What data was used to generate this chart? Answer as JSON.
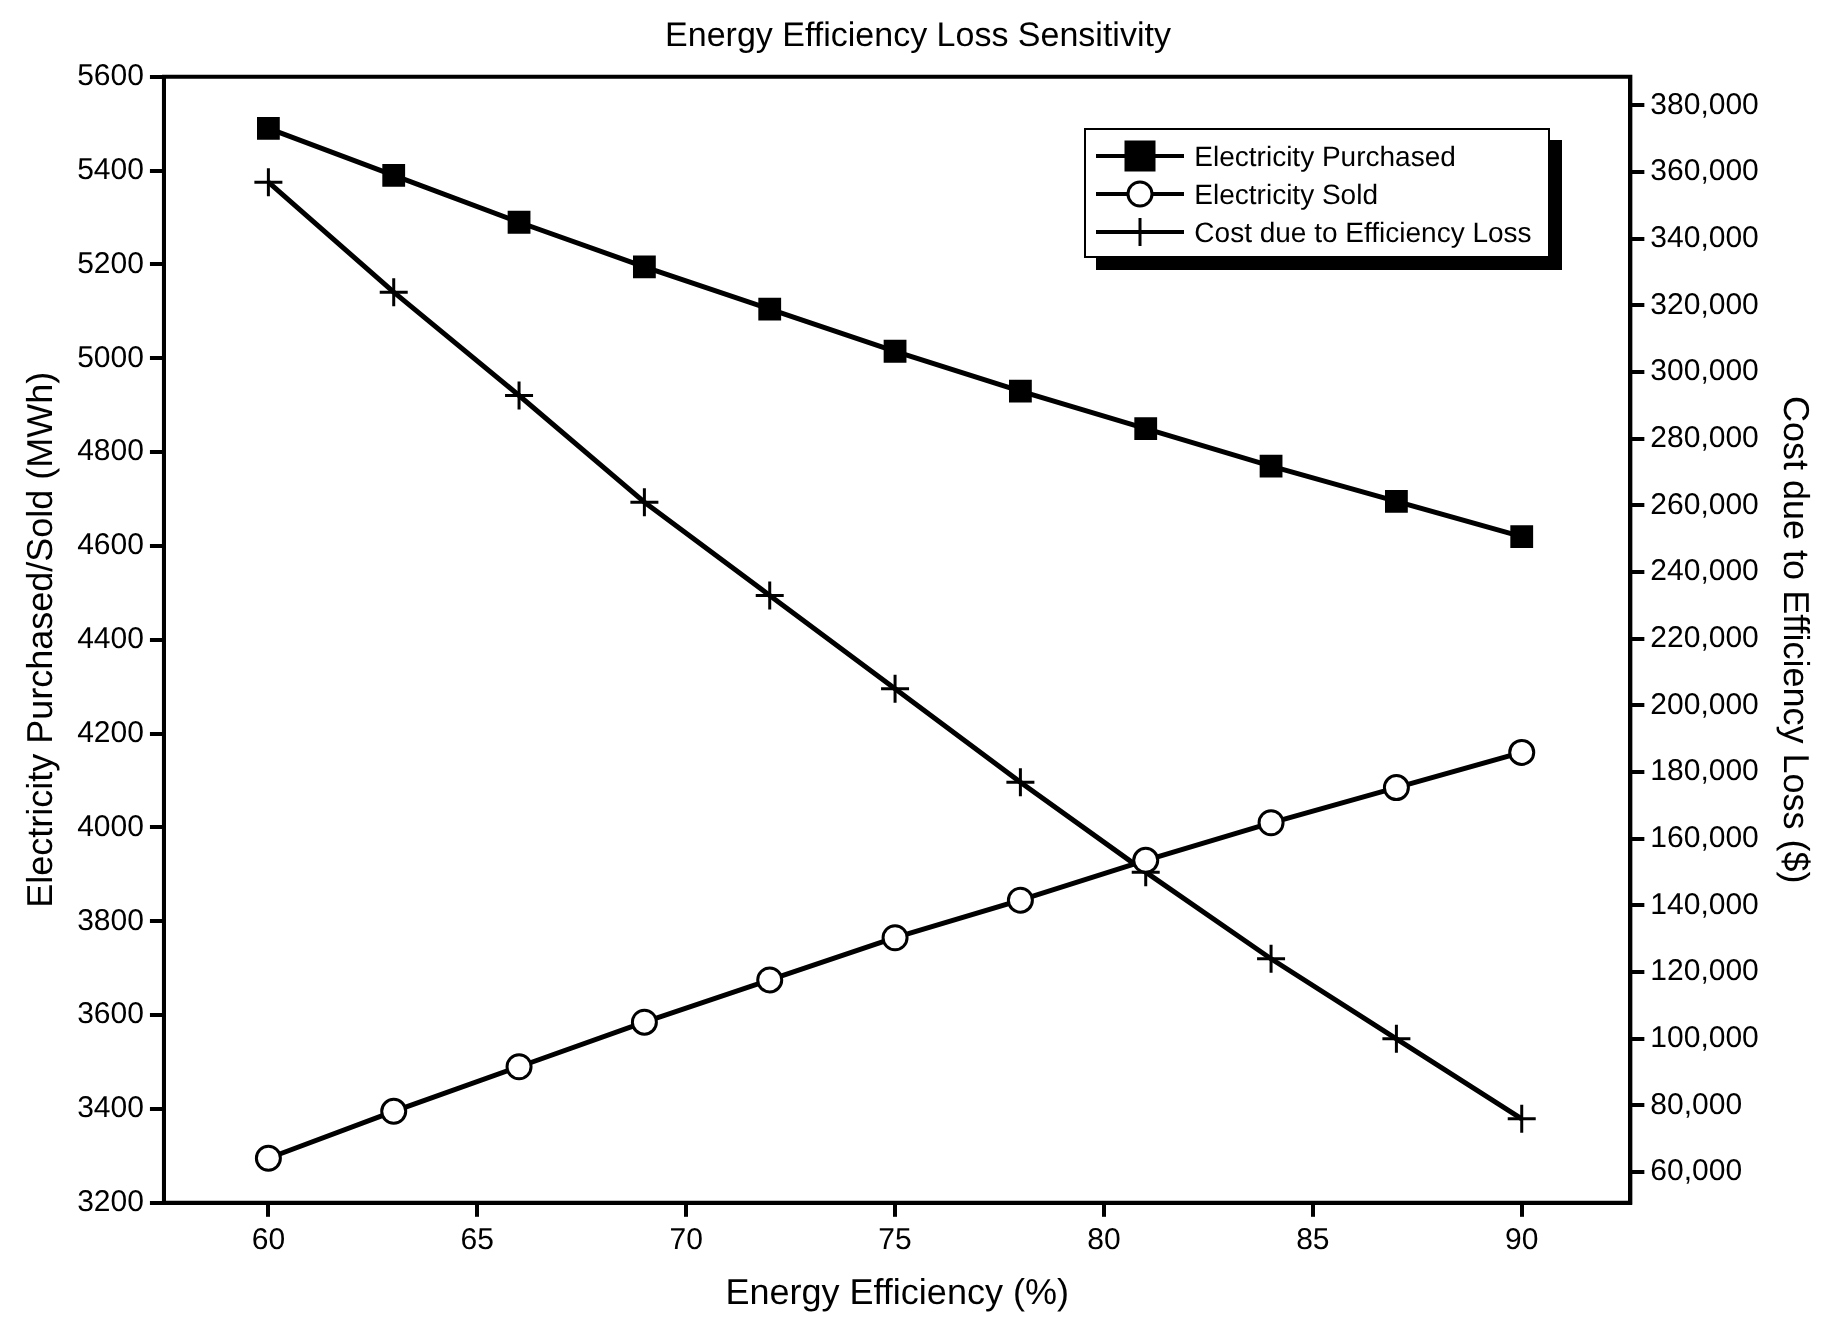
{
  "chart_data": {
    "type": "line",
    "title": "Energy Efficiency Loss Sensitivity",
    "xlabel": "Energy Efficiency (%)",
    "ylabel": "Electricity Purchased/Sold (MWh)",
    "y2label": "Cost due to Efficiency Loss ($)",
    "x": [
      60,
      63,
      66,
      69,
      72,
      75,
      78,
      81,
      84,
      87,
      90
    ],
    "series": [
      {
        "name": "Electricity Purchased",
        "color": "#000000",
        "marker": "square",
        "values": [
          5490,
          5390,
          5290,
          5195,
          5105,
          5015,
          4930,
          4850,
          4770,
          4695,
          4620
        ]
      },
      {
        "name": "Electricity Sold",
        "color": "#000000",
        "marker": "circle",
        "values": [
          3295,
          3395,
          3490,
          3585,
          3675,
          3765,
          3845,
          3930,
          4010,
          4085,
          4160
        ]
      },
      {
        "name": "Cost due to Efficiency Loss",
        "color": "#000000",
        "marker": "cross",
        "axis": "y2",
        "values": [
          357000,
          324000,
          293000,
          261000,
          233000,
          205000,
          177000,
          150000,
          124000,
          100000,
          76000
        ]
      }
    ],
    "xlim": [
      57.5,
      92.6
    ],
    "xticks": [
      60,
      65,
      70,
      75,
      80,
      85,
      90
    ],
    "ylim": [
      3200,
      5600
    ],
    "yticks": [
      3200,
      3400,
      3600,
      3800,
      4000,
      4200,
      4400,
      4600,
      4800,
      5000,
      5200,
      5400,
      5600
    ],
    "y2lim": [
      50800,
      388600
    ],
    "y2ticks": [
      {
        "value": 60000,
        "label": "60,000"
      },
      {
        "value": 80000,
        "label": "80,000"
      },
      {
        "value": 100000,
        "label": "100,000"
      },
      {
        "value": 120000,
        "label": "120,000"
      },
      {
        "value": 140000,
        "label": "140,000"
      },
      {
        "value": 160000,
        "label": "160,000"
      },
      {
        "value": 180000,
        "label": "180,000"
      },
      {
        "value": 200000,
        "label": "200,000"
      },
      {
        "value": 220000,
        "label": "220,000"
      },
      {
        "value": 240000,
        "label": "240,000"
      },
      {
        "value": 260000,
        "label": "260,000"
      },
      {
        "value": 280000,
        "label": "280,000"
      },
      {
        "value": 300000,
        "label": "300,000"
      },
      {
        "value": 320000,
        "label": "320,000"
      },
      {
        "value": 340000,
        "label": "340,000"
      },
      {
        "value": 360000,
        "label": "360,000"
      },
      {
        "value": 380000,
        "label": "380,000"
      }
    ],
    "grid": false,
    "legend": "top right",
    "line_style": "solid"
  }
}
